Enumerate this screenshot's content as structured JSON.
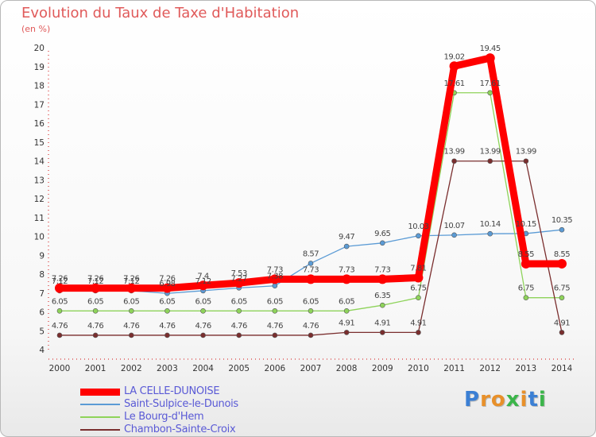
{
  "title": "Evolution du Taux de Taxe d'Habitation",
  "unit": "(en %)",
  "logo": {
    "text": "Proxiti",
    "colors": [
      "#3b7fd4",
      "#e8902a",
      "#e8902a",
      "#3bb54a",
      "#e8902a",
      "#3b7fd4",
      "#3bb54a"
    ]
  },
  "chart_data": {
    "type": "line",
    "x": [
      2000,
      2001,
      2002,
      2003,
      2004,
      2005,
      2006,
      2007,
      2008,
      2009,
      2010,
      2011,
      2012,
      2013,
      2014
    ],
    "ylim": [
      4,
      20
    ],
    "yticks": [
      4,
      5,
      6,
      7,
      8,
      9,
      10,
      11,
      12,
      13,
      14,
      15,
      16,
      17,
      18,
      19,
      20
    ],
    "series": [
      {
        "name": "LA CELLE-DUNOISE",
        "color": "#ff0000",
        "width": 9,
        "values": [
          7.26,
          7.26,
          7.26,
          7.26,
          7.4,
          7.53,
          7.73,
          7.73,
          7.73,
          7.73,
          7.81,
          19.02,
          19.45,
          8.55,
          8.55
        ],
        "labels": [
          "7.26",
          "7.26",
          "7.26",
          "7.26",
          "7.4",
          "7.53",
          "7.73",
          "7.73",
          "7.73",
          "7.73",
          "7.81",
          "19.02",
          "19.45",
          "8.55",
          "8.55"
        ]
      },
      {
        "name": "Saint-Sulpice-le-Dunois",
        "color": "#5b9bd5",
        "width": 1.3,
        "values": [
          7.12,
          7.12,
          7.12,
          6.98,
          7.12,
          7.27,
          7.38,
          8.57,
          9.47,
          9.65,
          10.03,
          10.07,
          10.14,
          10.15,
          10.35
        ],
        "labels": [
          "7.12",
          "7.12",
          "7.12",
          "6.98",
          "7.12",
          "7.27",
          "7.38",
          "8.57",
          "9.47",
          "9.65",
          "10.03",
          "10.07",
          "10.14",
          "10.15",
          "10.35"
        ]
      },
      {
        "name": "Le Bourg-d'Hem",
        "color": "#8ed35a",
        "width": 1.3,
        "values": [
          6.05,
          6.05,
          6.05,
          6.05,
          6.05,
          6.05,
          6.05,
          6.05,
          6.05,
          6.35,
          6.75,
          17.61,
          17.61,
          6.75,
          6.75
        ],
        "labels": [
          "6.05",
          "6.05",
          "6.05",
          "6.05",
          "6.05",
          "6.05",
          "6.05",
          "6.05",
          "6.05",
          "6.35",
          "6.75",
          "17.61",
          "17.61",
          "6.75",
          "6.75"
        ]
      },
      {
        "name": "Chambon-Sainte-Croix",
        "color": "#7a2e2e",
        "width": 1.3,
        "values": [
          4.76,
          4.76,
          4.76,
          4.76,
          4.76,
          4.76,
          4.76,
          4.76,
          4.91,
          4.91,
          4.91,
          13.99,
          13.99,
          13.99,
          4.91
        ],
        "labels": [
          "4.76",
          "4.76",
          "4.76",
          "4.76",
          "4.76",
          "4.76",
          "4.76",
          "4.76",
          "4.91",
          "4.91",
          "4.91",
          "13.99",
          "13.99",
          "13.99",
          "4.91"
        ]
      }
    ],
    "grid": false,
    "legend": "bottom-left"
  }
}
